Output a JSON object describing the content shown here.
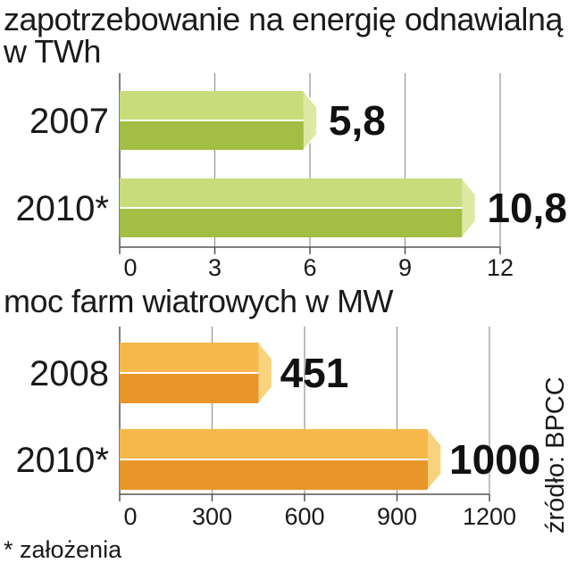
{
  "chart_data": [
    {
      "type": "bar",
      "orientation": "horizontal",
      "title": "zapotrzebowanie na energię odnawialną",
      "subtitle": "w TWh",
      "categories": [
        "2007",
        "2010*"
      ],
      "values": [
        5.8,
        10.8
      ],
      "value_labels": [
        "5,8",
        "10,8"
      ],
      "xlim": [
        0,
        12
      ],
      "xticks": [
        0,
        3,
        6,
        9,
        12
      ],
      "grid": true,
      "colors": {
        "top": "#c8dc79",
        "bottom": "#a2be44",
        "tip": "#dde9a3"
      }
    },
    {
      "type": "bar",
      "orientation": "horizontal",
      "title": "moc farm wiatrowych  w MW",
      "categories": [
        "2008",
        "2010*"
      ],
      "values": [
        451,
        1000
      ],
      "value_labels": [
        "451",
        "1000"
      ],
      "xlim": [
        0,
        1200
      ],
      "xticks": [
        0,
        300,
        600,
        900,
        1200
      ],
      "grid": true,
      "colors": {
        "top": "#f6b84a",
        "bottom": "#e8962a",
        "tip": "#f9d27d"
      }
    }
  ],
  "footnote": "* założenia",
  "source": "źródło: BPCC"
}
